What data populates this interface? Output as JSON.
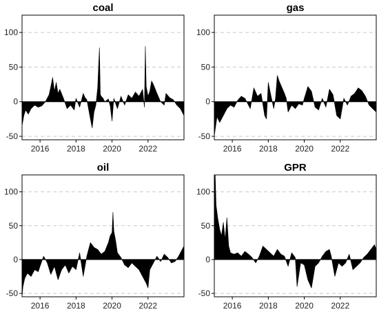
{
  "chart_data": [
    {
      "type": "area",
      "title": "coal",
      "xlabel": "",
      "ylabel": "",
      "xlim": [
        2015.0,
        2024.0
      ],
      "ylim": [
        -55,
        125
      ],
      "yticks": [
        -50,
        0,
        50,
        100
      ],
      "xticks": [
        2016,
        2018,
        2020,
        2022
      ],
      "grid": "horizontal dashed",
      "fill_color": "#000000",
      "x": [
        2015.0,
        2015.1,
        2015.2,
        2015.35,
        2015.5,
        2015.7,
        2015.9,
        2016.1,
        2016.3,
        2016.5,
        2016.6,
        2016.7,
        2016.8,
        2016.9,
        2017.0,
        2017.1,
        2017.3,
        2017.5,
        2017.7,
        2017.9,
        2018.0,
        2018.2,
        2018.4,
        2018.5,
        2018.6,
        2018.8,
        2018.9,
        2019.0,
        2019.1,
        2019.2,
        2019.3,
        2019.35,
        2019.4,
        2019.5,
        2019.6,
        2019.8,
        2019.9,
        2020.0,
        2020.1,
        2020.3,
        2020.5,
        2020.7,
        2020.9,
        2021.1,
        2021.3,
        2021.5,
        2021.7,
        2021.8,
        2021.85,
        2021.9,
        2022.0,
        2022.1,
        2022.2,
        2022.3,
        2022.5,
        2022.7,
        2022.9,
        2023.0,
        2023.2,
        2023.4,
        2023.6,
        2023.8,
        2024.0
      ],
      "y": [
        -35,
        -20,
        -12,
        -18,
        -10,
        -5,
        -8,
        -6,
        0,
        10,
        22,
        35,
        15,
        28,
        12,
        18,
        5,
        -10,
        -5,
        -12,
        5,
        -8,
        12,
        6,
        3,
        -25,
        -38,
        -15,
        -5,
        20,
        78,
        10,
        8,
        5,
        0,
        4,
        -6,
        -28,
        5,
        -10,
        8,
        -5,
        10,
        5,
        14,
        8,
        18,
        -8,
        80,
        22,
        8,
        15,
        30,
        25,
        12,
        0,
        -5,
        12,
        6,
        3,
        -5,
        -10,
        -20
      ]
    },
    {
      "type": "area",
      "title": "gas",
      "xlabel": "",
      "ylabel": "",
      "xlim": [
        2015.0,
        2024.0
      ],
      "ylim": [
        -55,
        125
      ],
      "yticks": [
        -50,
        0,
        50,
        100
      ],
      "xticks": [
        2016,
        2018,
        2020,
        2022
      ],
      "grid": "horizontal dashed",
      "fill_color": "#000000",
      "x": [
        2015.0,
        2015.05,
        2015.15,
        2015.3,
        2015.5,
        2015.7,
        2015.9,
        2016.1,
        2016.3,
        2016.5,
        2016.7,
        2016.9,
        2017.0,
        2017.2,
        2017.4,
        2017.6,
        2017.8,
        2017.9,
        2018.0,
        2018.1,
        2018.3,
        2018.4,
        2018.5,
        2018.6,
        2018.8,
        2018.9,
        2019.0,
        2019.1,
        2019.3,
        2019.5,
        2019.7,
        2019.9,
        2020.0,
        2020.2,
        2020.4,
        2020.6,
        2020.8,
        2021.0,
        2021.2,
        2021.4,
        2021.6,
        2021.8,
        2022.0,
        2022.2,
        2022.4,
        2022.6,
        2022.8,
        2023.0,
        2023.2,
        2023.4,
        2023.6,
        2023.8,
        2024.0
      ],
      "y": [
        -50,
        -40,
        -22,
        -30,
        -20,
        -10,
        -5,
        -8,
        2,
        8,
        5,
        -5,
        -10,
        20,
        8,
        12,
        -20,
        -25,
        28,
        15,
        -10,
        5,
        38,
        30,
        18,
        12,
        5,
        -15,
        -5,
        -10,
        -3,
        -5,
        5,
        22,
        15,
        -8,
        -12,
        5,
        -8,
        18,
        10,
        -20,
        -25,
        5,
        -5,
        8,
        12,
        20,
        16,
        8,
        -5,
        -10,
        -15
      ]
    },
    {
      "type": "area",
      "title": "oil",
      "xlabel": "",
      "ylabel": "",
      "xlim": [
        2015.0,
        2024.0
      ],
      "ylim": [
        -55,
        125
      ],
      "yticks": [
        -50,
        0,
        50,
        100
      ],
      "xticks": [
        2016,
        2018,
        2020,
        2022
      ],
      "grid": "horizontal dashed",
      "fill_color": "#000000",
      "x": [
        2015.0,
        2015.05,
        2015.15,
        2015.3,
        2015.5,
        2015.7,
        2015.9,
        2016.0,
        2016.2,
        2016.4,
        2016.6,
        2016.8,
        2017.0,
        2017.2,
        2017.4,
        2017.6,
        2017.8,
        2018.0,
        2018.2,
        2018.4,
        2018.6,
        2018.8,
        2019.0,
        2019.2,
        2019.4,
        2019.6,
        2019.8,
        2019.9,
        2020.0,
        2020.05,
        2020.1,
        2020.2,
        2020.3,
        2020.5,
        2020.7,
        2020.9,
        2021.1,
        2021.3,
        2021.5,
        2021.7,
        2021.9,
        2022.0,
        2022.1,
        2022.3,
        2022.5,
        2022.7,
        2022.9,
        2023.1,
        2023.3,
        2023.5,
        2023.7,
        2023.9,
        2024.0
      ],
      "y": [
        -55,
        -40,
        -28,
        -20,
        -25,
        -15,
        -18,
        -10,
        5,
        -5,
        -22,
        -10,
        -30,
        -15,
        -8,
        -20,
        -10,
        -15,
        10,
        -25,
        5,
        25,
        18,
        15,
        8,
        12,
        25,
        35,
        40,
        70,
        42,
        28,
        10,
        3,
        -8,
        -12,
        -5,
        -10,
        -15,
        -25,
        -35,
        -42,
        -15,
        -5,
        5,
        -3,
        8,
        3,
        -5,
        -3,
        5,
        15,
        20
      ]
    },
    {
      "type": "area",
      "title": "GPR",
      "xlabel": "",
      "ylabel": "",
      "xlim": [
        2015.0,
        2024.0
      ],
      "ylim": [
        -55,
        125
      ],
      "yticks": [
        -50,
        0,
        50,
        100
      ],
      "xticks": [
        2016,
        2018,
        2020,
        2022
      ],
      "grid": "horizontal dashed",
      "fill_color": "#000000",
      "x": [
        2015.0,
        2015.05,
        2015.1,
        2015.2,
        2015.3,
        2015.4,
        2015.5,
        2015.6,
        2015.7,
        2015.8,
        2015.9,
        2016.1,
        2016.3,
        2016.5,
        2016.7,
        2016.9,
        2017.1,
        2017.3,
        2017.5,
        2017.7,
        2017.9,
        2018.1,
        2018.3,
        2018.5,
        2018.7,
        2018.9,
        2019.1,
        2019.3,
        2019.5,
        2019.6,
        2019.8,
        2020.0,
        2020.2,
        2020.4,
        2020.6,
        2020.8,
        2021.0,
        2021.2,
        2021.4,
        2021.5,
        2021.7,
        2021.9,
        2022.1,
        2022.3,
        2022.5,
        2022.7,
        2022.9,
        2023.1,
        2023.3,
        2023.5,
        2023.7,
        2023.9,
        2024.0
      ],
      "y": [
        120,
        125,
        80,
        60,
        45,
        35,
        55,
        30,
        62,
        20,
        10,
        8,
        10,
        5,
        12,
        8,
        3,
        -5,
        5,
        20,
        15,
        10,
        5,
        15,
        8,
        5,
        -10,
        10,
        3,
        -40,
        -5,
        -8,
        -30,
        -42,
        -10,
        -5,
        5,
        12,
        15,
        5,
        -25,
        -5,
        -10,
        -5,
        8,
        -15,
        -10,
        -5,
        3,
        8,
        15,
        22,
        15
      ]
    }
  ]
}
